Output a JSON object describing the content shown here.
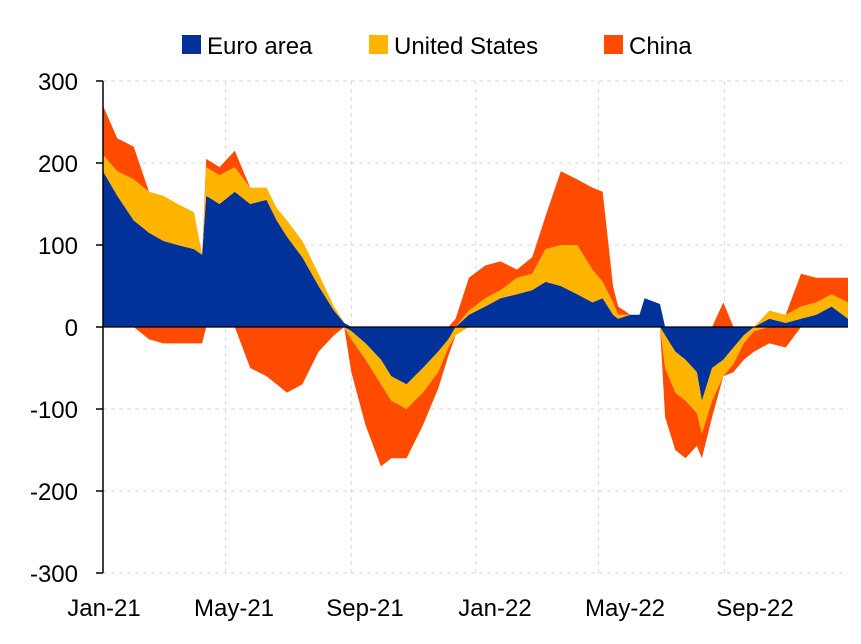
{
  "chart_data": {
    "type": "area",
    "stacked": true,
    "ylim": [
      -300,
      300
    ],
    "yticks": [
      "300",
      "200",
      "100",
      "0",
      "-100",
      "-200",
      "-300"
    ],
    "ytick_values": [
      300,
      200,
      100,
      0,
      -100,
      -200,
      -300
    ],
    "xlim": [
      "2021-01-01",
      "2022-12-31"
    ],
    "xticks": [
      "Jan-21",
      "May-21",
      "Sep-21",
      "Jan-22",
      "May-22",
      "Sep-22"
    ],
    "xtick_dates": [
      "2021-01-01",
      "2021-05-01",
      "2021-09-01",
      "2022-01-01",
      "2022-05-01",
      "2022-09-01"
    ],
    "grid": "dashed vertical and horizontal",
    "legend_position": "top",
    "series": [
      {
        "name": "Euro area",
        "color": "#003299",
        "points": [
          [
            "2021-01-01",
            190
          ],
          [
            "2021-01-15",
            160
          ],
          [
            "2021-01-31",
            130
          ],
          [
            "2021-02-15",
            115
          ],
          [
            "2021-03-01",
            105
          ],
          [
            "2021-03-15",
            100
          ],
          [
            "2021-03-31",
            95
          ],
          [
            "2021-04-08",
            88
          ],
          [
            "2021-04-12",
            160
          ],
          [
            "2021-04-25",
            150
          ],
          [
            "2021-05-10",
            165
          ],
          [
            "2021-05-25",
            150
          ],
          [
            "2021-06-10",
            155
          ],
          [
            "2021-06-20",
            130
          ],
          [
            "2021-06-30",
            110
          ],
          [
            "2021-07-15",
            85
          ],
          [
            "2021-07-31",
            50
          ],
          [
            "2021-08-15",
            20
          ],
          [
            "2021-08-25",
            5
          ],
          [
            "2021-09-01",
            -5
          ],
          [
            "2021-09-15",
            -20
          ],
          [
            "2021-09-30",
            -40
          ],
          [
            "2021-10-10",
            -60
          ],
          [
            "2021-10-25",
            -70
          ],
          [
            "2021-11-10",
            -50
          ],
          [
            "2021-11-25",
            -30
          ],
          [
            "2021-12-05",
            -15
          ],
          [
            "2021-12-12",
            0
          ],
          [
            "2021-12-25",
            15
          ],
          [
            "2022-01-10",
            25
          ],
          [
            "2022-01-25",
            35
          ],
          [
            "2022-02-10",
            40
          ],
          [
            "2022-02-25",
            45
          ],
          [
            "2022-03-10",
            55
          ],
          [
            "2022-03-25",
            50
          ],
          [
            "2022-04-10",
            40
          ],
          [
            "2022-04-25",
            30
          ],
          [
            "2022-05-05",
            35
          ],
          [
            "2022-05-15",
            15
          ],
          [
            "2022-05-20",
            10
          ],
          [
            "2022-06-01",
            15
          ],
          [
            "2022-06-10",
            15
          ],
          [
            "2022-06-15",
            35
          ],
          [
            "2022-06-30",
            28
          ],
          [
            "2022-07-05",
            -10
          ],
          [
            "2022-07-15",
            -30
          ],
          [
            "2022-07-25",
            -40
          ],
          [
            "2022-08-05",
            -55
          ],
          [
            "2022-08-10",
            -90
          ],
          [
            "2022-08-20",
            -50
          ],
          [
            "2022-08-31",
            -40
          ],
          [
            "2022-09-10",
            -25
          ],
          [
            "2022-09-20",
            -10
          ],
          [
            "2022-09-30",
            0
          ],
          [
            "2022-10-15",
            10
          ],
          [
            "2022-10-31",
            5
          ],
          [
            "2022-11-15",
            10
          ],
          [
            "2022-11-30",
            15
          ],
          [
            "2022-12-15",
            25
          ],
          [
            "2022-12-31",
            10
          ]
        ]
      },
      {
        "name": "United States",
        "color": "#FFB400",
        "points": [
          [
            "2021-01-01",
            20
          ],
          [
            "2021-01-15",
            30
          ],
          [
            "2021-01-31",
            50
          ],
          [
            "2021-02-15",
            50
          ],
          [
            "2021-03-01",
            55
          ],
          [
            "2021-03-15",
            50
          ],
          [
            "2021-03-31",
            45
          ],
          [
            "2021-04-08",
            0
          ],
          [
            "2021-04-12",
            35
          ],
          [
            "2021-04-25",
            35
          ],
          [
            "2021-05-10",
            30
          ],
          [
            "2021-05-25",
            20
          ],
          [
            "2021-06-10",
            15
          ],
          [
            "2021-06-20",
            15
          ],
          [
            "2021-06-30",
            20
          ],
          [
            "2021-07-15",
            20
          ],
          [
            "2021-07-31",
            15
          ],
          [
            "2021-08-15",
            5
          ],
          [
            "2021-08-25",
            0
          ],
          [
            "2021-09-01",
            -10
          ],
          [
            "2021-09-15",
            -20
          ],
          [
            "2021-09-30",
            -30
          ],
          [
            "2021-10-10",
            -30
          ],
          [
            "2021-10-25",
            -30
          ],
          [
            "2021-11-10",
            -30
          ],
          [
            "2021-11-25",
            -25
          ],
          [
            "2021-12-05",
            -10
          ],
          [
            "2021-12-12",
            -10
          ],
          [
            "2021-12-25",
            5
          ],
          [
            "2022-01-10",
            10
          ],
          [
            "2022-01-25",
            10
          ],
          [
            "2022-02-10",
            20
          ],
          [
            "2022-02-25",
            20
          ],
          [
            "2022-03-10",
            40
          ],
          [
            "2022-03-25",
            50
          ],
          [
            "2022-04-10",
            60
          ],
          [
            "2022-04-25",
            40
          ],
          [
            "2022-05-05",
            20
          ],
          [
            "2022-05-15",
            15
          ],
          [
            "2022-05-20",
            5
          ],
          [
            "2022-06-01",
            0
          ],
          [
            "2022-06-10",
            0
          ],
          [
            "2022-06-15",
            0
          ],
          [
            "2022-06-30",
            0
          ],
          [
            "2022-07-05",
            -40
          ],
          [
            "2022-07-15",
            -50
          ],
          [
            "2022-07-25",
            -50
          ],
          [
            "2022-08-05",
            -50
          ],
          [
            "2022-08-10",
            -40
          ],
          [
            "2022-08-20",
            -40
          ],
          [
            "2022-08-31",
            -20
          ],
          [
            "2022-09-10",
            -20
          ],
          [
            "2022-09-20",
            -10
          ],
          [
            "2022-09-30",
            -5
          ],
          [
            "2022-10-15",
            10
          ],
          [
            "2022-10-31",
            10
          ],
          [
            "2022-11-15",
            15
          ],
          [
            "2022-11-30",
            15
          ],
          [
            "2022-12-15",
            15
          ],
          [
            "2022-12-31",
            20
          ]
        ]
      },
      {
        "name": "China",
        "color": "#FF4B00",
        "points": [
          [
            "2021-01-01",
            60
          ],
          [
            "2021-01-15",
            40
          ],
          [
            "2021-01-31",
            40
          ],
          [
            "2021-02-15",
            -15
          ],
          [
            "2021-03-01",
            -20
          ],
          [
            "2021-03-15",
            -20
          ],
          [
            "2021-03-31",
            -20
          ],
          [
            "2021-04-08",
            -20
          ],
          [
            "2021-04-12",
            10
          ],
          [
            "2021-04-25",
            10
          ],
          [
            "2021-05-10",
            20
          ],
          [
            "2021-05-25",
            -50
          ],
          [
            "2021-06-10",
            -60
          ],
          [
            "2021-06-20",
            -70
          ],
          [
            "2021-06-30",
            -80
          ],
          [
            "2021-07-15",
            -70
          ],
          [
            "2021-07-31",
            -30
          ],
          [
            "2021-08-15",
            -10
          ],
          [
            "2021-08-25",
            0
          ],
          [
            "2021-09-01",
            -40
          ],
          [
            "2021-09-15",
            -80
          ],
          [
            "2021-09-30",
            -100
          ],
          [
            "2021-10-10",
            -70
          ],
          [
            "2021-10-25",
            -60
          ],
          [
            "2021-11-10",
            -40
          ],
          [
            "2021-11-25",
            -20
          ],
          [
            "2021-12-05",
            -10
          ],
          [
            "2021-12-12",
            10
          ],
          [
            "2021-12-25",
            40
          ],
          [
            "2022-01-10",
            40
          ],
          [
            "2022-01-25",
            35
          ],
          [
            "2022-02-10",
            10
          ],
          [
            "2022-02-25",
            20
          ],
          [
            "2022-03-10",
            40
          ],
          [
            "2022-03-25",
            90
          ],
          [
            "2022-04-10",
            80
          ],
          [
            "2022-04-25",
            100
          ],
          [
            "2022-05-05",
            110
          ],
          [
            "2022-05-15",
            20
          ],
          [
            "2022-05-20",
            10
          ],
          [
            "2022-06-01",
            0
          ],
          [
            "2022-06-10",
            0
          ],
          [
            "2022-06-15",
            0
          ],
          [
            "2022-06-30",
            0
          ],
          [
            "2022-07-05",
            -60
          ],
          [
            "2022-07-15",
            -70
          ],
          [
            "2022-07-25",
            -70
          ],
          [
            "2022-08-05",
            -40
          ],
          [
            "2022-08-10",
            -30
          ],
          [
            "2022-08-20",
            -20
          ],
          [
            "2022-08-31",
            30
          ],
          [
            "2022-09-10",
            -10
          ],
          [
            "2022-09-20",
            -20
          ],
          [
            "2022-09-30",
            -25
          ],
          [
            "2022-10-15",
            -20
          ],
          [
            "2022-10-31",
            -25
          ],
          [
            "2022-11-15",
            40
          ],
          [
            "2022-11-30",
            30
          ],
          [
            "2022-12-15",
            20
          ],
          [
            "2022-12-31",
            30
          ]
        ]
      }
    ]
  }
}
